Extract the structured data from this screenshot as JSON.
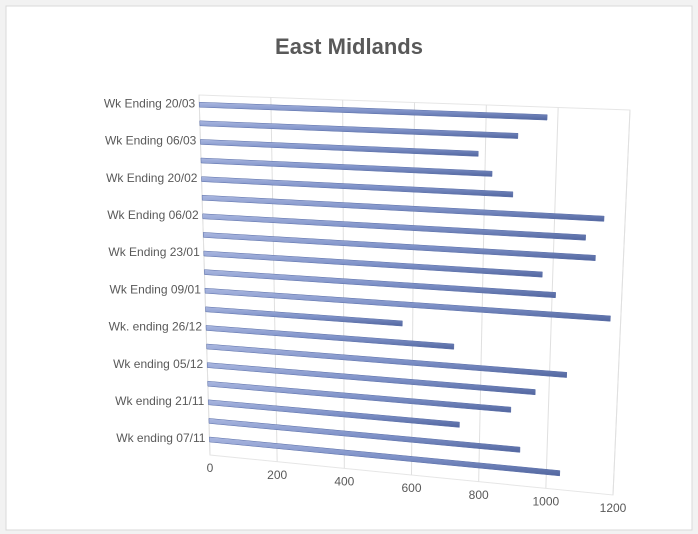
{
  "chart_data": {
    "type": "bar3d",
    "title": "East Midlands",
    "categories": [
      "Wk ending 07/11",
      null,
      "Wk ending 21/11",
      null,
      "Wk ending 05/12",
      null,
      "Wk. ending 26/12",
      null,
      "Wk Ending 09/01",
      null,
      "Wk Ending 23/01",
      null,
      "Wk Ending 06/02",
      null,
      "Wk Ending 20/02",
      null,
      "Wk Ending 06/03",
      null,
      "Wk Ending 20/03"
    ],
    "values": [
      1040,
      920,
      740,
      890,
      960,
      1050,
      720,
      570,
      1170,
      1010,
      970,
      1120,
      1090,
      1140,
      880,
      820,
      780,
      890,
      970
    ],
    "color": "#7f92c8",
    "xlim": [
      0,
      1200
    ],
    "xticks": [
      0,
      200,
      400,
      600,
      800,
      1000,
      1200
    ],
    "grid": true
  }
}
